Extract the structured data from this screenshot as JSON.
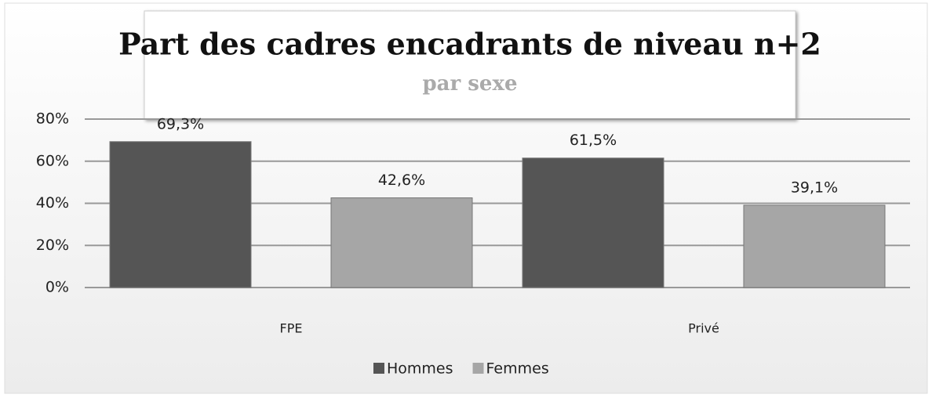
{
  "chart_data": {
    "type": "bar",
    "title": "Part des cadres encadrants de niveau n+2",
    "subtitle": "par sexe",
    "categories": [
      "FPE",
      "Privé"
    ],
    "series": [
      {
        "name": "Hommes",
        "color": "#555555",
        "values": [
          69.3,
          61.5
        ],
        "value_labels": [
          "69,3%",
          "61,5%"
        ]
      },
      {
        "name": "Femmes",
        "color": "#a6a6a6",
        "values": [
          42.6,
          39.1
        ],
        "value_labels": [
          "42,6%",
          "39,1%"
        ]
      }
    ],
    "ylim": [
      0,
      80
    ],
    "yticks": [
      {
        "value": 0,
        "label": "0%"
      },
      {
        "value": 20,
        "label": "20%"
      },
      {
        "value": 40,
        "label": "40%"
      },
      {
        "value": 60,
        "label": "60%"
      },
      {
        "value": 80,
        "label": "80%"
      }
    ],
    "grid": true,
    "legend": "bottom"
  }
}
